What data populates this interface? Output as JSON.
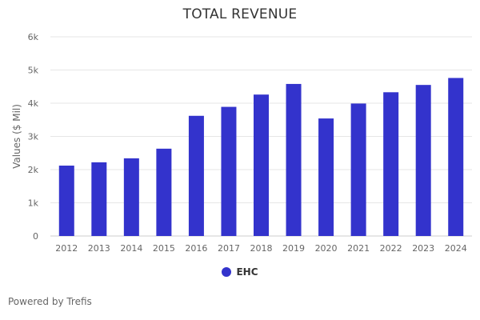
{
  "chart_data": {
    "type": "bar",
    "title": "TOTAL REVENUE",
    "xlabel": "",
    "ylabel": "Values ($ Mil)",
    "categories": [
      "2012",
      "2013",
      "2014",
      "2015",
      "2016",
      "2017",
      "2018",
      "2019",
      "2020",
      "2021",
      "2022",
      "2023",
      "2024"
    ],
    "series": [
      {
        "name": "EHC",
        "color": "#3333cc",
        "values": [
          2120,
          2220,
          2340,
          2630,
          3620,
          3890,
          4260,
          4580,
          3540,
          3990,
          4330,
          4550,
          4760
        ]
      }
    ],
    "ylim": [
      0,
      6000
    ],
    "yticks": [
      0,
      1000,
      2000,
      3000,
      4000,
      5000,
      6000
    ],
    "ytick_labels": [
      "0",
      "1k",
      "2k",
      "3k",
      "4k",
      "5k",
      "6k"
    ],
    "grid": true,
    "legend_position": "bottom-center"
  },
  "footer": {
    "credits": "Powered by Trefis"
  }
}
